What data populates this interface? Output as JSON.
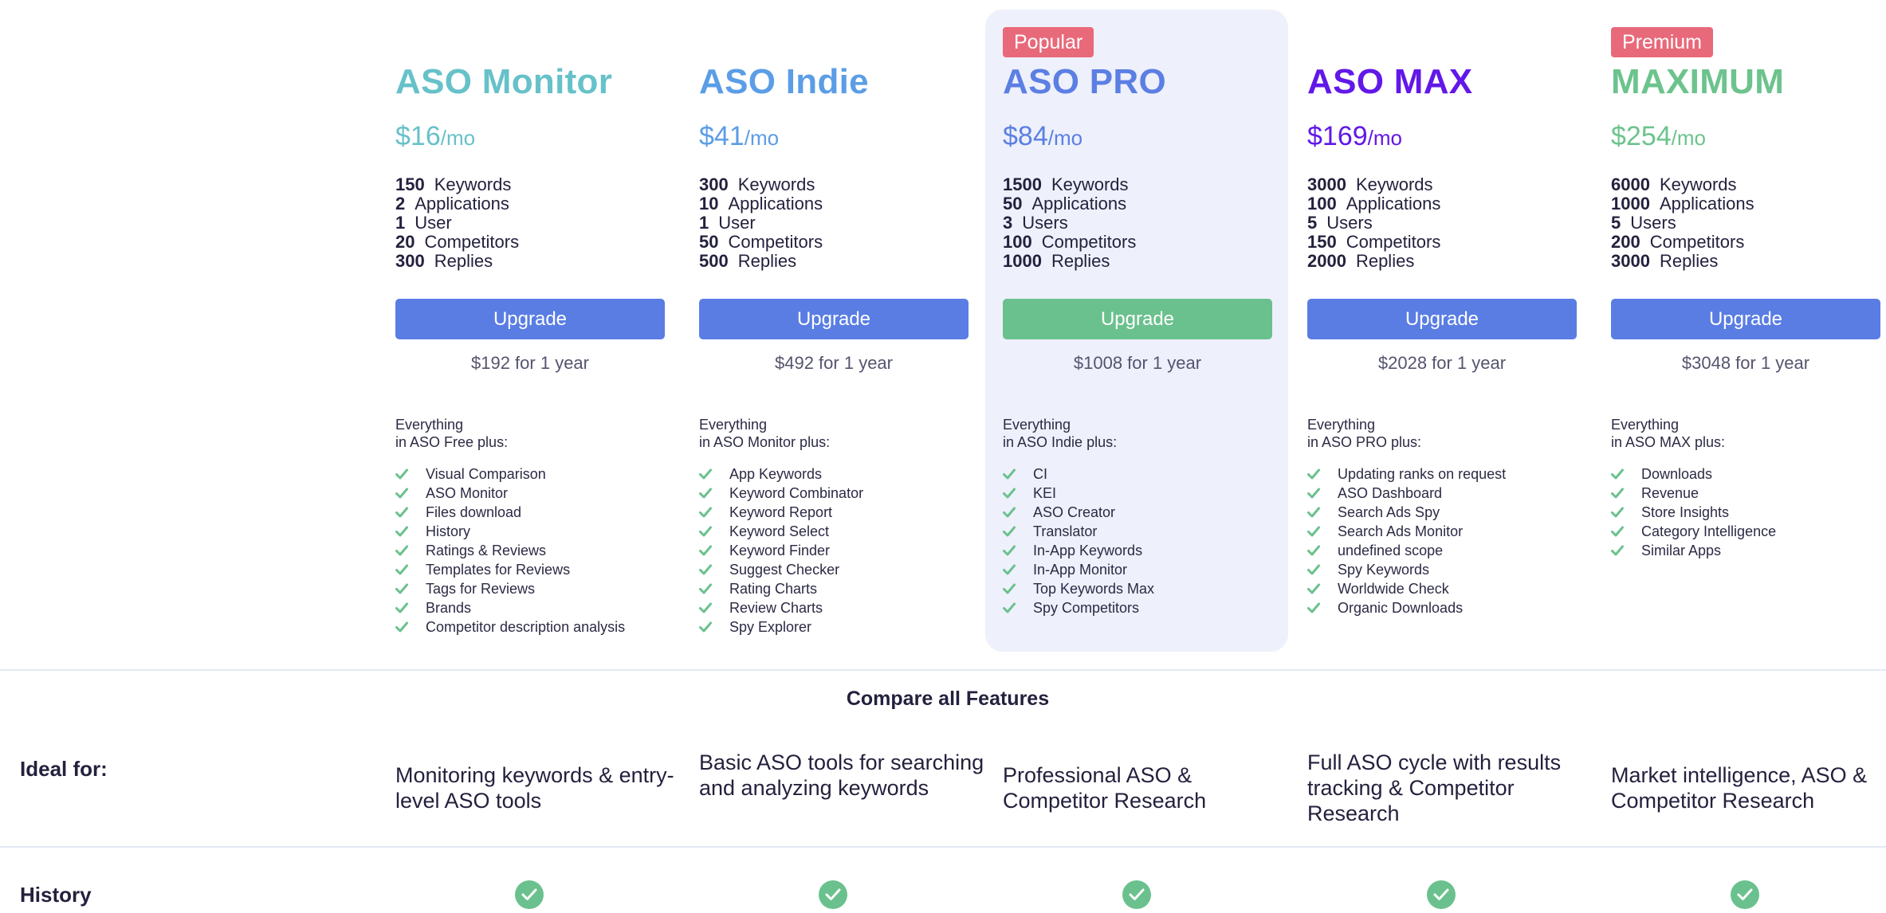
{
  "plans": [
    {
      "name": "ASO Monitor",
      "color": "#67c1c9",
      "badge": null,
      "price": "$16",
      "per": "/mo",
      "stats": [
        {
          "value": "150",
          "label": "Keywords"
        },
        {
          "value": "2",
          "label": "Applications"
        },
        {
          "value": "1",
          "label": "User"
        },
        {
          "value": "20",
          "label": "Competitors"
        },
        {
          "value": "300",
          "label": "Replies"
        }
      ],
      "button_label": "Upgrade",
      "button_color": "#5a7de3",
      "yearly": "$192 for 1 year",
      "everything_line1": "Everything",
      "everything_line2": "in ASO Free plus:",
      "features": [
        "Visual Comparison",
        "ASO Monitor",
        "Files download",
        "History",
        "Ratings & Reviews",
        "Templates for Reviews",
        "Tags for Reviews",
        "Brands",
        "Competitor description analysis"
      ],
      "ideal_for": "Monitoring keywords & entry-level ASO tools"
    },
    {
      "name": "ASO Indie",
      "color": "#5b9de6",
      "badge": null,
      "price": "$41",
      "per": "/mo",
      "stats": [
        {
          "value": "300",
          "label": "Keywords"
        },
        {
          "value": "10",
          "label": "Applications"
        },
        {
          "value": "1",
          "label": "User"
        },
        {
          "value": "50",
          "label": "Competitors"
        },
        {
          "value": "500",
          "label": "Replies"
        }
      ],
      "button_label": "Upgrade",
      "button_color": "#5a7de3",
      "yearly": "$492 for 1 year",
      "everything_line1": "Everything",
      "everything_line2": "in ASO Monitor plus:",
      "features": [
        "App Keywords",
        "Keyword Combinator",
        "Keyword Report",
        "Keyword Select",
        "Keyword Finder",
        "Suggest Checker",
        "Rating Charts",
        "Review Charts",
        "Spy Explorer"
      ],
      "ideal_for": "Basic ASO tools for searching and analyzing keywords"
    },
    {
      "name": "ASO PRO",
      "color": "#5b7fe3",
      "badge": "Popular",
      "price": "$84",
      "per": "/mo",
      "stats": [
        {
          "value": "1500",
          "label": "Keywords"
        },
        {
          "value": "50",
          "label": "Applications"
        },
        {
          "value": "3",
          "label": "Users"
        },
        {
          "value": "100",
          "label": "Competitors"
        },
        {
          "value": "1000",
          "label": "Replies"
        }
      ],
      "button_label": "Upgrade",
      "button_color": "#6ac18d",
      "yearly": "$1008 for 1 year",
      "everything_line1": "Everything",
      "everything_line2": "in ASO Indie plus:",
      "features": [
        "CI",
        "KEI",
        "ASO Creator",
        "Translator",
        "In-App Keywords",
        "In-App Monitor",
        "Top Keywords Max",
        "Spy Competitors"
      ],
      "ideal_for": "Professional ASO & Competitor Research"
    },
    {
      "name": "ASO MAX",
      "color": "#6118e8",
      "badge": null,
      "price": "$169",
      "per": "/mo",
      "stats": [
        {
          "value": "3000",
          "label": "Keywords"
        },
        {
          "value": "100",
          "label": "Applications"
        },
        {
          "value": "5",
          "label": "Users"
        },
        {
          "value": "150",
          "label": "Competitors"
        },
        {
          "value": "2000",
          "label": "Replies"
        }
      ],
      "button_label": "Upgrade",
      "button_color": "#5a7de3",
      "yearly": "$2028 for 1 year",
      "everything_line1": "Everything",
      "everything_line2": "in ASO PRO plus:",
      "features": [
        "Updating ranks on request",
        "ASO Dashboard",
        "Search Ads Spy",
        "Search Ads Monitor",
        "undefined scope",
        "Spy Keywords",
        "Worldwide Check",
        "Organic Downloads"
      ],
      "ideal_for": "Full ASO cycle with results tracking & Competitor Research"
    },
    {
      "name": "MAXIMUM",
      "color": "#6cc38d",
      "badge": "Premium",
      "price": "$254",
      "per": "/mo",
      "stats": [
        {
          "value": "6000",
          "label": "Keywords"
        },
        {
          "value": "1000",
          "label": "Applications"
        },
        {
          "value": "5",
          "label": "Users"
        },
        {
          "value": "200",
          "label": "Competitors"
        },
        {
          "value": "3000",
          "label": "Replies"
        }
      ],
      "button_label": "Upgrade",
      "button_color": "#5a7de3",
      "yearly": "$3048 for 1 year",
      "everything_line1": "Everything",
      "everything_line2": "in ASO MAX plus:",
      "features": [
        "Downloads",
        "Revenue",
        "Store Insights",
        "Category Intelligence",
        "Similar Apps"
      ],
      "ideal_for": "Market intelligence, ASO & Competitor Research"
    }
  ],
  "compare": {
    "title": "Compare all Features",
    "rows": [
      {
        "label": "Ideal for:"
      },
      {
        "label": "History",
        "values": [
          true,
          true,
          true,
          true,
          true
        ]
      }
    ]
  },
  "colors": {
    "check": "#6ac18d",
    "featured_bg": "#eef0fb",
    "badge_bg": "#e8697a",
    "button_blue": "#5a7de3",
    "button_green": "#6ac18d"
  }
}
